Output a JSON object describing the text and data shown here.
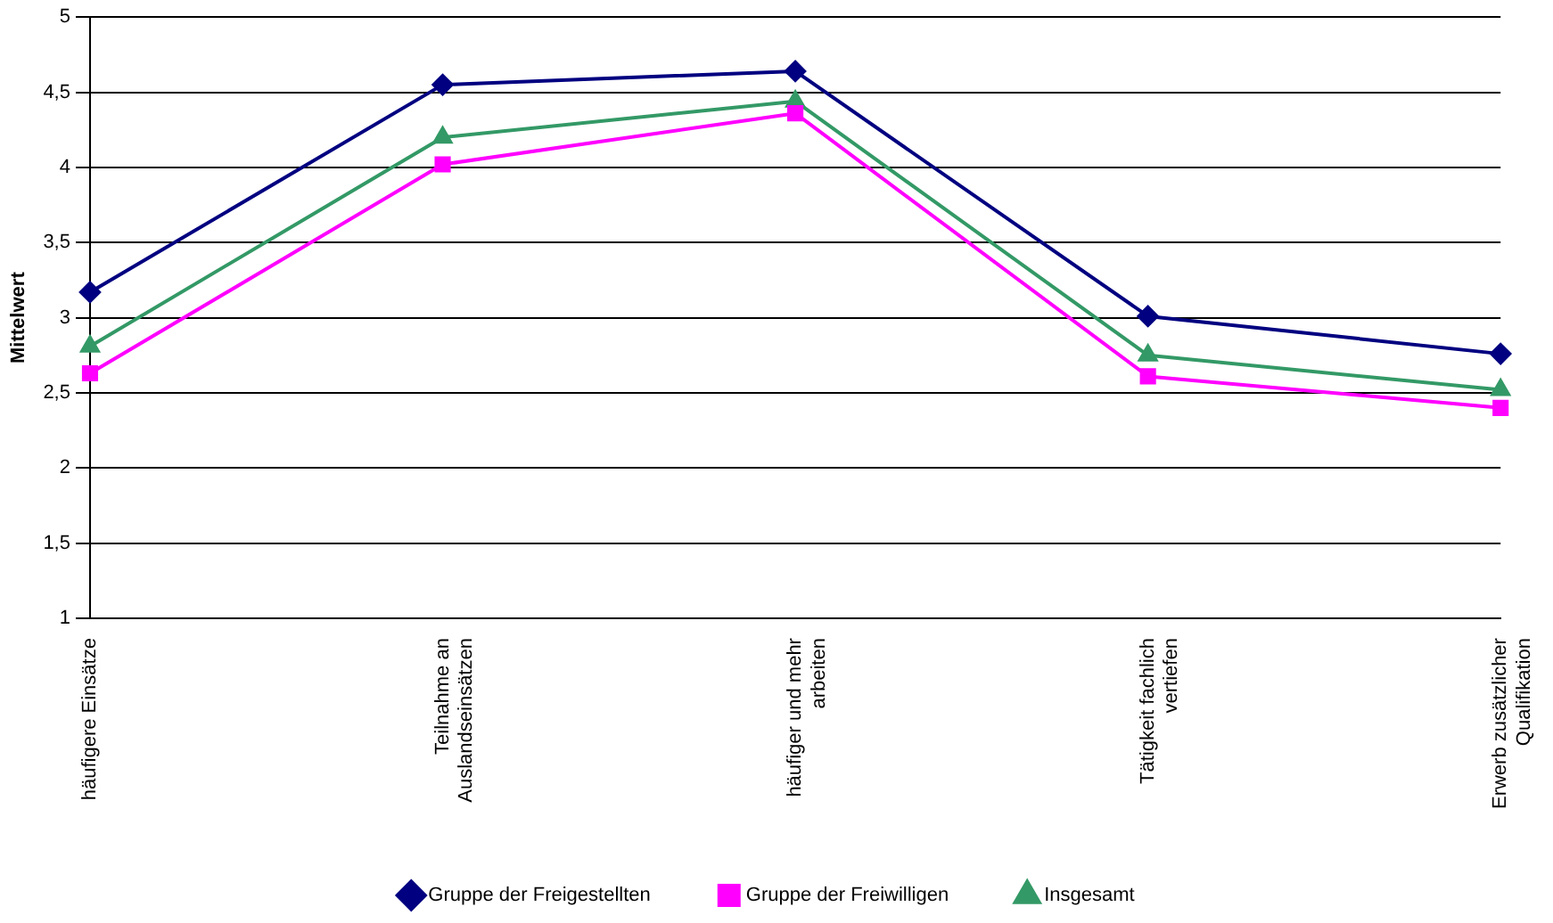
{
  "chart_data": {
    "type": "line",
    "ylabel": "Mittelwert",
    "categories": [
      "häufigere Einsätze",
      "Teilnahme an\nAuslandseinsätzen",
      "häufiger und mehr\narbeiten",
      "Tätigkeit fachlich\nvertiefen",
      "Erwerb zusätzlicher\nQualifikation"
    ],
    "series": [
      {
        "name": "Gruppe der Freigestellten",
        "color": "#000080",
        "marker": "diamond",
        "values": [
          3.17,
          4.55,
          4.64,
          3.01,
          2.76
        ]
      },
      {
        "name": "Gruppe der Freiwilligen",
        "color": "#ff00ff",
        "marker": "square",
        "values": [
          2.63,
          4.02,
          4.36,
          2.61,
          2.4
        ]
      },
      {
        "name": "Insgesamt",
        "color": "#339966",
        "marker": "triangle",
        "values": [
          2.81,
          4.2,
          4.44,
          2.75,
          2.52
        ]
      }
    ],
    "ylim": [
      1,
      5
    ],
    "yticks": [
      {
        "value": 1,
        "label": "1"
      },
      {
        "value": 1.5,
        "label": "1,5"
      },
      {
        "value": 2,
        "label": "2"
      },
      {
        "value": 2.5,
        "label": "2,5"
      },
      {
        "value": 3,
        "label": "3"
      },
      {
        "value": 3.5,
        "label": "3,5"
      },
      {
        "value": 4,
        "label": "4"
      },
      {
        "value": 4.5,
        "label": "4,5"
      },
      {
        "value": 5,
        "label": "5"
      }
    ],
    "grid": "y",
    "legend": "bottom"
  }
}
